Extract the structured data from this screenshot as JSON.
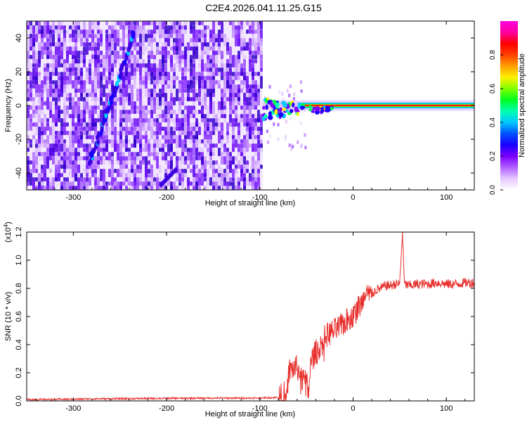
{
  "figure": {
    "title": "C2E4.2026.041.11.25.G15"
  },
  "chart_data": [
    {
      "type": "heatmap",
      "id": "spectrogram",
      "title": "C2E4.2026.041.11.25.G15",
      "xlabel": "Height of straight line (km)",
      "ylabel": "Frequency (Hz)",
      "xlim": [
        -350,
        130
      ],
      "ylim": [
        -50,
        50
      ],
      "x_ticks": [
        -300,
        -200,
        -100,
        0,
        100
      ],
      "x_tick_labels": [
        "-300",
        "-200",
        "-100",
        "0",
        "100"
      ],
      "y_ticks": [
        -40,
        -20,
        0,
        20,
        40
      ],
      "y_tick_labels": [
        "-40",
        "-20",
        "0",
        "20",
        "40"
      ],
      "noise_region_x": [
        -350,
        -97
      ],
      "diagonal_trace": {
        "x_start": -283,
        "y_start": -35,
        "x_end": -235,
        "y_end": 42
      },
      "faint_trace": {
        "x_start": -206,
        "y_start": -47,
        "x_end": -190,
        "y_end": -38
      },
      "carrier_frequency_hz": 0,
      "carrier_x_range": [
        -97,
        130
      ],
      "colorbar": {
        "label": "Normalized spectral amplitude",
        "range": [
          0,
          1
        ],
        "ticks": [
          0.0,
          0.2,
          0.4,
          0.6,
          0.8
        ],
        "tick_labels": [
          "0.0",
          "0.2",
          "0.4",
          "0.6",
          "0.8"
        ],
        "colors": [
          "#ffffff",
          "#e6c8ff",
          "#b060ff",
          "#7b00ff",
          "#1a00ff",
          "#0050ff",
          "#00c8ff",
          "#00ffb0",
          "#00ff20",
          "#80ff00",
          "#fff000",
          "#ffa000",
          "#ff4000",
          "#ff0000",
          "#ff00a0",
          "#ff00e0"
        ]
      }
    },
    {
      "type": "line",
      "id": "snr",
      "xlabel": "Height of straight line (km)",
      "ylabel": "SNR (10 * v/v)",
      "exponent_label": "(x10",
      "exponent_power": "4",
      "exponent_close": ")",
      "xlim": [
        -350,
        130
      ],
      "ylim": [
        0,
        1.2
      ],
      "x_ticks": [
        -300,
        -200,
        -100,
        0,
        100
      ],
      "x_tick_labels": [
        "-300",
        "-200",
        "-100",
        "0",
        "100"
      ],
      "y_ticks": [
        0.0,
        0.2,
        0.4,
        0.6,
        0.8,
        1.0,
        1.2
      ],
      "y_tick_labels": [
        "0.0",
        "0.2",
        "0.4",
        "0.6",
        "0.8",
        "1.0",
        "1.2"
      ],
      "color": "#e8312e",
      "series": [
        {
          "name": "SNR",
          "x": [
            -350,
            -300,
            -280,
            -260,
            -200,
            -150,
            -100,
            -80,
            -72,
            -68,
            -60,
            -55,
            -50,
            -48,
            -45,
            -40,
            -35,
            -30,
            -25,
            -20,
            -15,
            -10,
            -5,
            0,
            5,
            10,
            15,
            20,
            25,
            30,
            35,
            40,
            45,
            50,
            53,
            55,
            60,
            70,
            80,
            90,
            100,
            110,
            120,
            130
          ],
          "y": [
            0.01,
            0.012,
            0.015,
            0.015,
            0.018,
            0.02,
            0.02,
            0.025,
            0.06,
            0.22,
            0.24,
            0.15,
            0.14,
            0.05,
            0.28,
            0.35,
            0.38,
            0.46,
            0.48,
            0.5,
            0.52,
            0.55,
            0.58,
            0.6,
            0.66,
            0.7,
            0.74,
            0.76,
            0.79,
            0.8,
            0.82,
            0.82,
            0.83,
            0.83,
            1.2,
            0.83,
            0.82,
            0.83,
            0.83,
            0.84,
            0.83,
            0.83,
            0.84,
            0.84
          ]
        }
      ]
    }
  ]
}
